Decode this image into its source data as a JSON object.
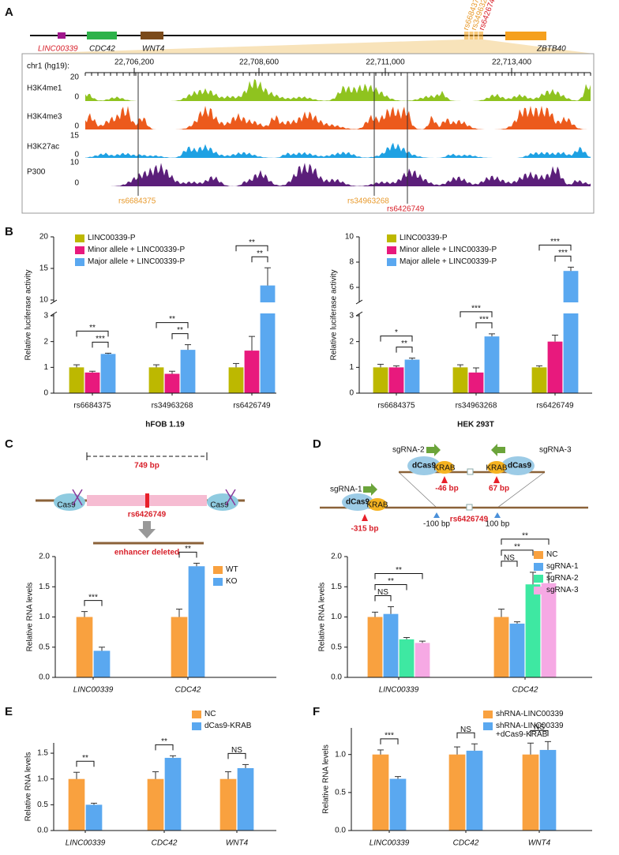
{
  "panel_labels": [
    "A",
    "B",
    "C",
    "D",
    "E",
    "F"
  ],
  "panel_a": {
    "genes": [
      "LINC00339",
      "CDC42",
      "WNT4",
      "ZBTB40"
    ],
    "snps": [
      "rs6684375",
      "rs34963268",
      "rs6426749"
    ],
    "locus": "chr1 (hg19):",
    "coordinates": [
      "22,706,200",
      "22,708,600",
      "22,711,000",
      "22,713,400"
    ],
    "tracks": [
      {
        "name": "H3K4me1",
        "max": "20",
        "min": "0"
      },
      {
        "name": "H3K4me3",
        "min": "0"
      },
      {
        "name": "H3K27ac",
        "max": "15",
        "min": "0"
      },
      {
        "name": "P300",
        "max": "10",
        "min": "0"
      }
    ]
  },
  "diagram_c": {
    "enzyme": "Cas9",
    "length": "749 bp",
    "snp": "rs6426749",
    "result": "enhancer deleted"
  },
  "diagram_d": {
    "guides": [
      "sgRNA-1",
      "sgRNA-2",
      "sgRNA-3"
    ],
    "protein": "dCas9",
    "effector": "KRAB",
    "offsets": [
      "-315 bp",
      "-46 bp",
      "67 bp"
    ],
    "window": [
      "-100 bp",
      "100 bp"
    ],
    "snp": "rs6426749"
  },
  "chart_data": [
    {
      "type": "bar",
      "xlabel": "hFOB 1.19",
      "ylabel": "Relative luciferase activity",
      "categories": [
        "rs6684375",
        "rs34963268",
        "rs6426749"
      ],
      "series": [
        {
          "name": "LINC00339-P",
          "color": "#bdb800",
          "values": [
            1.0,
            1.0,
            1.0
          ],
          "errors": [
            0.1,
            0.1,
            0.15
          ]
        },
        {
          "name": "Minor allele + LINC00339-P",
          "color": "#e8197d",
          "values": [
            0.8,
            0.75,
            1.65
          ],
          "errors": [
            0.05,
            0.1,
            0.55
          ]
        },
        {
          "name": "Major allele + LINC00339-P",
          "color": "#5aa8f0",
          "values": [
            1.52,
            1.68,
            12.3
          ],
          "errors": [
            0.03,
            0.2,
            2.8
          ]
        }
      ],
      "ylim": [
        0,
        20
      ],
      "axis_break": [
        3,
        10
      ],
      "yticks": [
        0,
        1,
        2,
        3,
        10,
        15,
        20
      ],
      "annotations": [
        {
          "text": "***",
          "category": 0,
          "series": [
            1,
            2
          ]
        },
        {
          "text": "**",
          "category": 0,
          "series": [
            0,
            2
          ]
        },
        {
          "text": "**",
          "category": 1,
          "series": [
            1,
            2
          ]
        },
        {
          "text": "**",
          "category": 1,
          "series": [
            0,
            2
          ]
        },
        {
          "text": "**",
          "category": 2,
          "series": [
            1,
            2
          ]
        },
        {
          "text": "**",
          "category": 2,
          "series": [
            0,
            2
          ]
        }
      ]
    },
    {
      "type": "bar",
      "xlabel": "HEK 293T",
      "ylabel": "Relative luciferase activity",
      "categories": [
        "rs6684375",
        "rs34963268",
        "rs6426749"
      ],
      "series": [
        {
          "name": "LINC00339-P",
          "color": "#bdb800",
          "values": [
            1.0,
            1.0,
            1.0
          ],
          "errors": [
            0.12,
            0.1,
            0.06
          ]
        },
        {
          "name": "Minor allele + LINC00339-P",
          "color": "#e8197d",
          "values": [
            1.0,
            0.8,
            2.0
          ],
          "errors": [
            0.06,
            0.18,
            0.25
          ]
        },
        {
          "name": "Major allele + LINC00339-P",
          "color": "#5aa8f0",
          "values": [
            1.3,
            2.2,
            7.3
          ],
          "errors": [
            0.06,
            0.1,
            0.3
          ]
        }
      ],
      "ylim": [
        0,
        10
      ],
      "axis_break": [
        3,
        5
      ],
      "yticks": [
        0,
        1,
        2,
        3,
        6,
        8,
        10
      ],
      "annotations": [
        {
          "text": "**",
          "category": 0,
          "series": [
            1,
            2
          ]
        },
        {
          "text": "*",
          "category": 0,
          "series": [
            0,
            2
          ]
        },
        {
          "text": "***",
          "category": 1,
          "series": [
            1,
            2
          ]
        },
        {
          "text": "***",
          "category": 1,
          "series": [
            0,
            2
          ]
        },
        {
          "text": "***",
          "category": 2,
          "series": [
            1,
            2
          ]
        },
        {
          "text": "***",
          "category": 2,
          "series": [
            0,
            2
          ]
        }
      ]
    },
    {
      "type": "bar",
      "ylabel": "Relative RNA levels",
      "categories": [
        "LINC00339",
        "CDC42"
      ],
      "series": [
        {
          "name": "WT",
          "color": "#f9a13f",
          "values": [
            1.0,
            1.0
          ],
          "errors": [
            0.09,
            0.13
          ]
        },
        {
          "name": "KO",
          "color": "#5aa8f0",
          "values": [
            0.44,
            1.84
          ],
          "errors": [
            0.06,
            0.05
          ]
        }
      ],
      "ylim": [
        0,
        2
      ],
      "yticks": [
        {
          "value": 0,
          "label": "0.0"
        },
        {
          "value": 0.5,
          "label": "0.5"
        },
        {
          "value": 1,
          "label": "1.0"
        },
        {
          "value": 1.5,
          "label": "1.5"
        },
        {
          "value": 2,
          "label": "2.0"
        }
      ],
      "annotations": [
        {
          "text": "***",
          "category": 0,
          "series": [
            0,
            1
          ]
        },
        {
          "text": "**",
          "category": 1,
          "series": [
            0,
            1
          ]
        }
      ]
    },
    {
      "type": "bar",
      "ylabel": "Relative RNA levels",
      "categories": [
        "LINC00339",
        "CDC42"
      ],
      "series": [
        {
          "name": "NC",
          "color": "#f9a13f",
          "values": [
            1.0,
            1.0
          ],
          "errors": [
            0.08,
            0.13
          ]
        },
        {
          "name": "sgRNA-1",
          "color": "#5aa8f0",
          "values": [
            1.05,
            0.89
          ],
          "errors": [
            0.12,
            0.03
          ]
        },
        {
          "name": "sgRNA-2",
          "color": "#3ee8a2",
          "values": [
            0.63,
            1.54
          ],
          "errors": [
            0.03,
            0.2
          ]
        },
        {
          "name": "sgRNA-3",
          "color": "#f6a9e4",
          "values": [
            0.57,
            1.56
          ],
          "errors": [
            0.03,
            0.17
          ]
        }
      ],
      "ylim": [
        0,
        2
      ],
      "yticks": [
        {
          "value": 0,
          "label": "0.0"
        },
        {
          "value": 0.5,
          "label": "0.5"
        },
        {
          "value": 1,
          "label": "1.0"
        },
        {
          "value": 1.5,
          "label": "1.5"
        },
        {
          "value": 2,
          "label": "2.0"
        }
      ],
      "annotations": [
        {
          "text": "NS",
          "category": 0,
          "series": [
            0,
            1
          ]
        },
        {
          "text": "**",
          "category": 0,
          "series": [
            0,
            2
          ]
        },
        {
          "text": "**",
          "category": 0,
          "series": [
            0,
            3
          ]
        },
        {
          "text": "NS",
          "category": 1,
          "series": [
            0,
            1
          ]
        },
        {
          "text": "**",
          "category": 1,
          "series": [
            0,
            2
          ]
        },
        {
          "text": "**",
          "category": 1,
          "series": [
            0,
            3
          ]
        }
      ]
    },
    {
      "type": "bar",
      "ylabel": "Relative RNA levels",
      "categories": [
        "LINC00339",
        "CDC42",
        "WNT4"
      ],
      "series": [
        {
          "name": "NC",
          "color": "#f9a13f",
          "values": [
            1.0,
            1.0,
            1.0
          ],
          "errors": [
            0.13,
            0.14,
            0.14
          ]
        },
        {
          "name": "dCas9-KRAB",
          "color": "#5aa8f0",
          "values": [
            0.5,
            1.41,
            1.21
          ],
          "errors": [
            0.03,
            0.04,
            0.07
          ]
        }
      ],
      "ylim": [
        0,
        1.7
      ],
      "yticks": [
        {
          "value": 0,
          "label": "0.0"
        },
        {
          "value": 0.5,
          "label": "0.5"
        },
        {
          "value": 1,
          "label": "1.0"
        },
        {
          "value": 1.5,
          "label": "1.5"
        }
      ],
      "annotations": [
        {
          "text": "**",
          "category": 0,
          "series": [
            0,
            1
          ]
        },
        {
          "text": "**",
          "category": 1,
          "series": [
            0,
            1
          ]
        },
        {
          "text": "NS",
          "category": 2,
          "series": [
            0,
            1
          ]
        }
      ]
    },
    {
      "type": "bar",
      "ylabel": "Relative RNA levels",
      "categories": [
        "LINC00339",
        "CDC42",
        "WNT4"
      ],
      "series": [
        {
          "name": "shRNA-LINC00339",
          "color": "#f9a13f",
          "values": [
            1.0,
            1.0,
            1.0
          ],
          "errors": [
            0.06,
            0.1,
            0.15
          ]
        },
        {
          "name": "shRNA-LINC00339 +dCas9-KRAB",
          "color": "#5aa8f0",
          "values": [
            0.68,
            1.05,
            1.06
          ],
          "errors": [
            0.03,
            0.09,
            0.11
          ]
        }
      ],
      "ylim": [
        0,
        1.35
      ],
      "yticks": [
        {
          "value": 0,
          "label": "0.0"
        },
        {
          "value": 0.5,
          "label": "0.5"
        },
        {
          "value": 1,
          "label": "1.0"
        }
      ],
      "annotations": [
        {
          "text": "***",
          "category": 0,
          "series": [
            0,
            1
          ]
        },
        {
          "text": "NS",
          "category": 1,
          "series": [
            0,
            1
          ]
        },
        {
          "text": "NS",
          "category": 2,
          "series": [
            0,
            1
          ]
        }
      ]
    }
  ]
}
